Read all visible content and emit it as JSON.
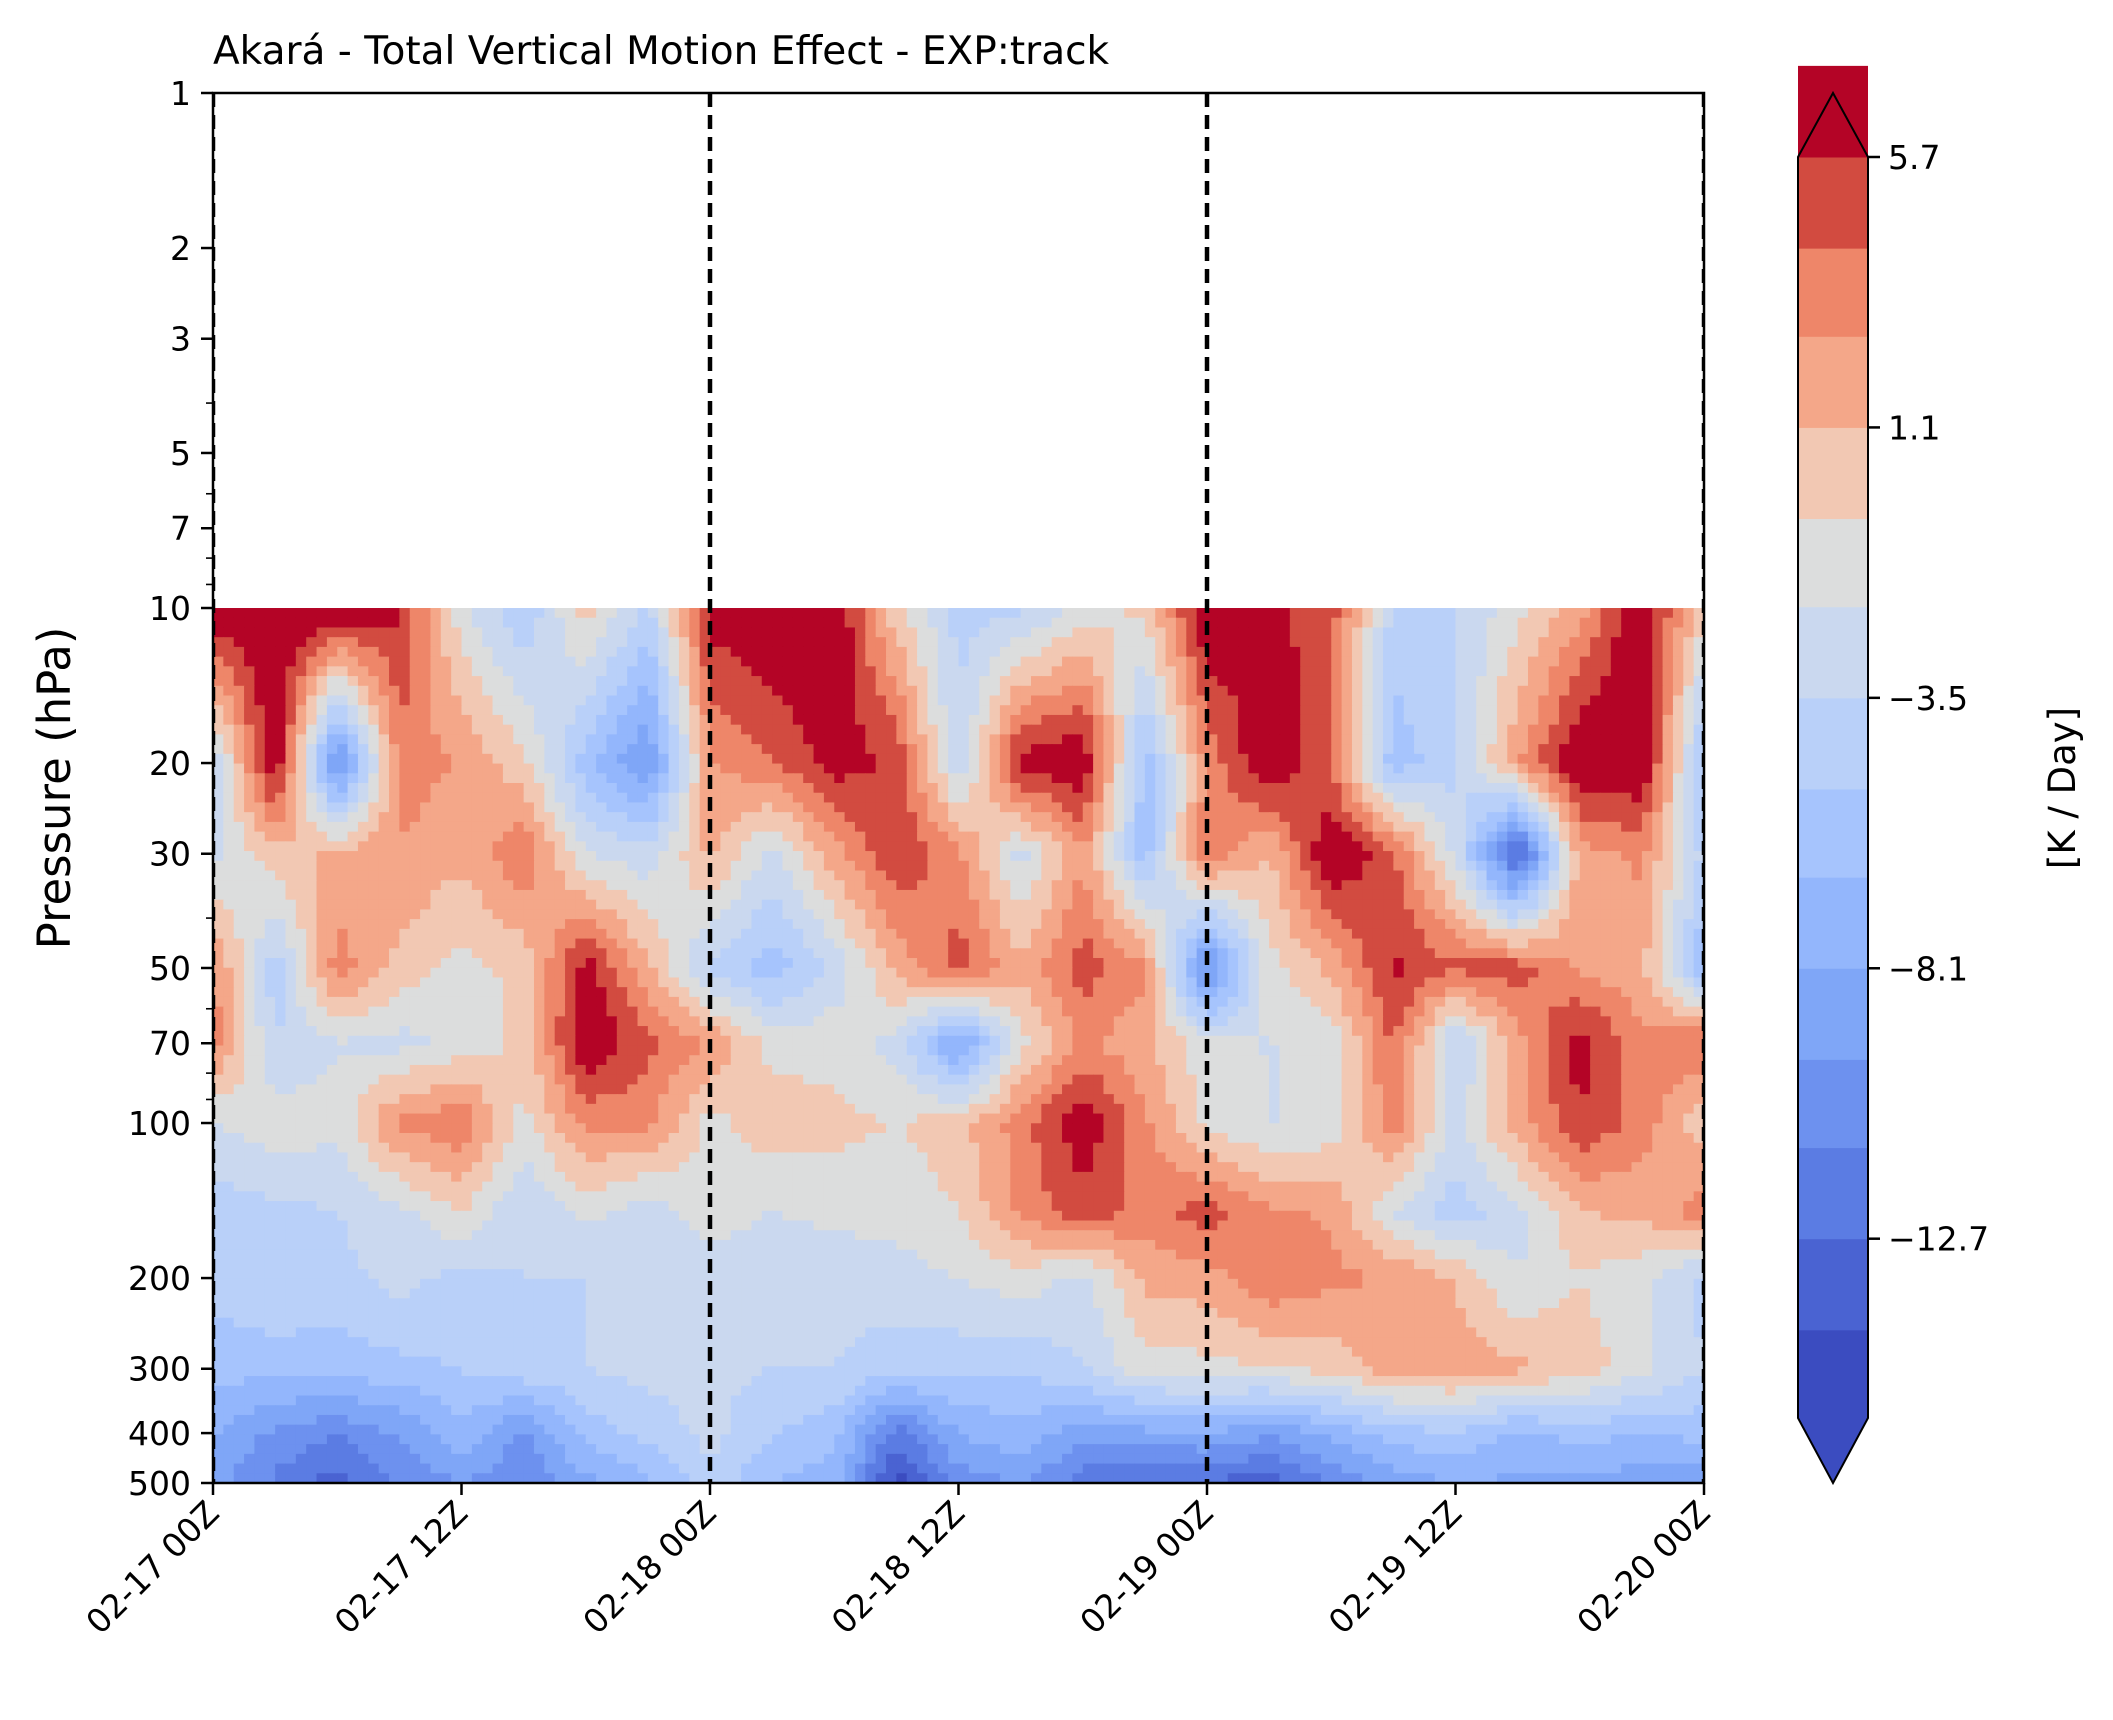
{
  "chart_data": {
    "type": "heatmap",
    "subtype": "filled-contour",
    "title": "Akará - Total Vertical Motion Effect - EXP:track",
    "xlabel": "",
    "ylabel": "Pressure (hPa)",
    "y_scale": "log",
    "y_inverted": true,
    "ylim": [
      500,
      1
    ],
    "y_ticks": [
      1,
      2,
      3,
      5,
      7,
      10,
      20,
      30,
      50,
      70,
      100,
      200,
      300,
      400,
      500
    ],
    "y_tick_labels": [
      "1",
      "2",
      "3",
      "5",
      "7",
      "10",
      "20",
      "30",
      "50",
      "70",
      "100",
      "200",
      "300",
      "400",
      "500"
    ],
    "data_top_hPa": 10,
    "x_range": [
      "2024-02-17T00:00Z",
      "2024-02-20T00:00Z"
    ],
    "x_ticks": [
      "02-17 00Z",
      "02-17 12Z",
      "02-18 00Z",
      "02-18 12Z",
      "02-19 00Z",
      "02-19 12Z",
      "02-20 00Z"
    ],
    "x_tick_hours": [
      0,
      12,
      24,
      36,
      48,
      60,
      72
    ],
    "x_end_hours": 72,
    "day_separators_hours": [
      0,
      24,
      48,
      72
    ],
    "levels_hPa": [
      10,
      20,
      30,
      50,
      70,
      100,
      150,
      200,
      300,
      400,
      500
    ],
    "times_hours": [
      0,
      3,
      6,
      9,
      12,
      15,
      18,
      21,
      24,
      27,
      30,
      33,
      36,
      39,
      42,
      45,
      48,
      51,
      54,
      57,
      60,
      63,
      66,
      69,
      72
    ],
    "values_K_per_day": [
      [
        7.5,
        7.5,
        7.5,
        6.0,
        -1.5,
        -5.0,
        0.5,
        -4.0,
        6.5,
        7.5,
        7.5,
        0.0,
        -4.0,
        -4.0,
        -1.5,
        0.0,
        7.5,
        6.0,
        5.0,
        -4.0,
        -3.5,
        -1.0,
        2.0,
        7.5,
        0.0
      ],
      [
        -3.5,
        7.5,
        -11.0,
        3.5,
        2.5,
        0.0,
        -6.0,
        -10.0,
        2.5,
        4.0,
        6.5,
        5.5,
        -3.5,
        6.5,
        7.5,
        -6.0,
        3.0,
        7.5,
        4.0,
        -6.0,
        -4.0,
        2.5,
        7.5,
        7.5,
        -6.0
      ],
      [
        -2.5,
        0.5,
        1.5,
        2.5,
        1.5,
        4.0,
        -2.0,
        -3.0,
        1.5,
        -2.5,
        2.0,
        5.5,
        3.0,
        -2.5,
        2.5,
        -6.0,
        4.0,
        1.0,
        7.5,
        4.5,
        -2.5,
        -14.0,
        2.0,
        3.0,
        -4.0
      ],
      [
        3.0,
        -4.5,
        3.5,
        0.5,
        -1.0,
        0.0,
        6.5,
        1.5,
        -4.0,
        -6.0,
        -3.0,
        1.5,
        5.0,
        1.5,
        5.0,
        3.0,
        -11.0,
        -1.0,
        1.5,
        6.0,
        4.5,
        5.0,
        2.5,
        1.5,
        -6.5
      ],
      [
        3.5,
        -3.5,
        -2.0,
        -2.5,
        -1.5,
        0.0,
        7.5,
        4.5,
        2.5,
        -1.0,
        -1.0,
        -2.5,
        -9.0,
        -1.0,
        3.0,
        1.5,
        -1.5,
        -2.0,
        -1.5,
        4.5,
        -4.0,
        2.0,
        6.5,
        3.0,
        4.5
      ],
      [
        -2.0,
        -1.0,
        -1.5,
        3.0,
        4.0,
        -1.0,
        3.0,
        3.0,
        -1.0,
        0.5,
        0.0,
        -0.5,
        0.5,
        3.5,
        7.0,
        3.0,
        -1.0,
        -2.0,
        -1.5,
        3.5,
        -2.5,
        2.0,
        5.5,
        3.5,
        0.0
      ],
      [
        -4.5,
        -4.0,
        -3.5,
        -2.5,
        -0.5,
        -3.5,
        -1.5,
        -3.0,
        -1.0,
        -2.0,
        -1.5,
        -1.5,
        -0.5,
        3.0,
        5.0,
        3.5,
        5.0,
        3.0,
        2.5,
        -2.0,
        -4.5,
        -2.5,
        1.0,
        1.5,
        3.5
      ],
      [
        -4.5,
        -3.5,
        -4.0,
        -3.0,
        -4.0,
        -3.5,
        -3.5,
        -3.0,
        -3.0,
        -3.5,
        -3.0,
        -2.5,
        -2.0,
        -1.0,
        -2.5,
        1.5,
        2.0,
        4.0,
        3.0,
        2.5,
        1.0,
        -2.0,
        -0.5,
        -1.5,
        -4.0
      ],
      [
        -6.0,
        -6.0,
        -6.0,
        -5.5,
        -5.0,
        -4.0,
        -3.5,
        -3.0,
        -3.0,
        -3.5,
        -3.5,
        -4.5,
        -4.5,
        -5.0,
        -3.5,
        -1.0,
        -1.0,
        -0.5,
        0.0,
        2.0,
        2.0,
        1.5,
        0.5,
        -1.5,
        -3.5
      ],
      [
        -8.0,
        -10.0,
        -11.0,
        -9.5,
        -7.0,
        -10.0,
        -6.0,
        -4.5,
        -3.0,
        -5.0,
        -6.0,
        -12.0,
        -8.0,
        -7.0,
        -9.0,
        -8.5,
        -8.0,
        -9.5,
        -7.5,
        -6.0,
        -5.0,
        -7.0,
        -6.0,
        -6.5,
        -6.0
      ],
      [
        -9.0,
        -11.5,
        -13.5,
        -11.0,
        -9.5,
        -11.0,
        -8.5,
        -7.0,
        -4.0,
        -6.5,
        -7.5,
        -15.0,
        -10.5,
        -9.5,
        -12.0,
        -13.0,
        -13.0,
        -13.5,
        -11.0,
        -9.0,
        -8.0,
        -8.5,
        -8.5,
        -9.0,
        -9.0
      ]
    ],
    "colormap": "coolwarm",
    "contour_levels": [
      -17.3,
      -15.75,
      -14.25,
      -12.7,
      -11.15,
      -9.65,
      -8.1,
      -6.55,
      -5.05,
      -3.5,
      -1.95,
      -0.45,
      1.1,
      2.65,
      4.15,
      5.7,
      7.25
    ],
    "level_colors": [
      "#3b4cc0",
      "#4a63d2",
      "#5b7ce3",
      "#6d91ef",
      "#7fa6f7",
      "#93b6fc",
      "#a6c4fd",
      "#b9d0f9",
      "#cad8ef",
      "#dcdddd",
      "#f2c8b3",
      "#f4a789",
      "#ee8669",
      "#d24b40",
      "#b40426"
    ],
    "colorbar": {
      "label": "[K / Day]",
      "ticks": [
        5.7,
        1.1,
        -3.5,
        -8.1,
        -12.7
      ],
      "tick_labels": [
        "5.7",
        "1.1",
        "−3.5",
        "−8.1",
        "−12.7"
      ],
      "extend": "both",
      "under_color": "#3b4cc0",
      "over_color": "#b40426"
    },
    "grid": false,
    "separator_style": "dashed black"
  }
}
